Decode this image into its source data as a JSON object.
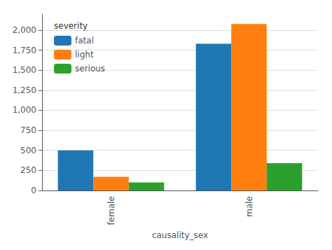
{
  "chart_data": {
    "type": "bar",
    "xlabel": "causality_sex",
    "categories": [
      "female",
      "male"
    ],
    "series": [
      {
        "name": "fatal",
        "color": "#1f77b4",
        "values": [
          500,
          1830
        ]
      },
      {
        "name": "light",
        "color": "#ff7f0e",
        "values": [
          170,
          2075
        ]
      },
      {
        "name": "serious",
        "color": "#2ca02c",
        "values": [
          100,
          340
        ]
      }
    ],
    "legend_title": "severity",
    "legend": "upper left",
    "ylim": [
      0,
      2200
    ],
    "yticks": [
      0,
      250,
      500,
      750,
      1000,
      1250,
      1500,
      1750,
      2000
    ],
    "grid": true
  }
}
